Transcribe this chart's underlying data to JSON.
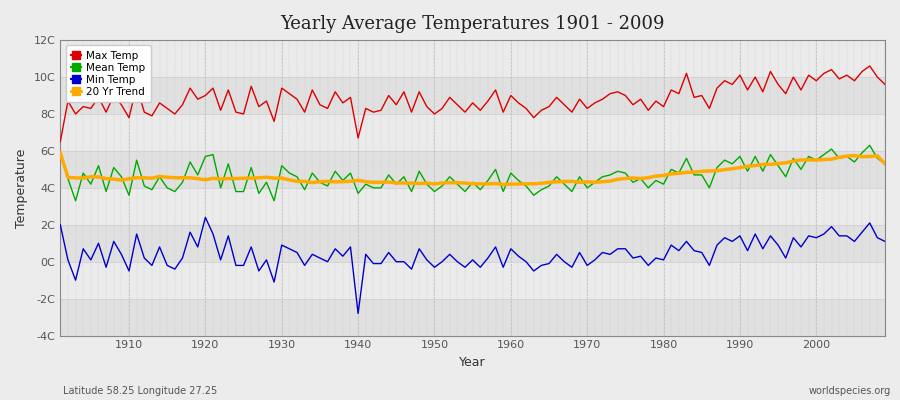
{
  "title": "Yearly Average Temperatures 1901 - 2009",
  "xlabel": "Year",
  "ylabel": "Temperature",
  "footnote_left": "Latitude 58.25 Longitude 27.25",
  "footnote_right": "worldspecies.org",
  "ylim": [
    -4,
    12
  ],
  "yticks": [
    -4,
    -2,
    0,
    2,
    4,
    6,
    8,
    10,
    12
  ],
  "ytick_labels": [
    "-4C",
    "-2C",
    "0C",
    "2C",
    "4C",
    "6C",
    "8C",
    "10C",
    "12C"
  ],
  "xlim": [
    1901,
    2009
  ],
  "xticks": [
    1910,
    1920,
    1930,
    1940,
    1950,
    1960,
    1970,
    1980,
    1990,
    2000
  ],
  "colors": {
    "max": "#dd0000",
    "mean": "#00aa00",
    "min": "#0000cc",
    "trend": "#ffaa00",
    "fig_bg": "#e8e8e8",
    "plot_bg": "#e0e0e0",
    "band_light": "#ebebeb",
    "band_dark": "#d8d8d8",
    "grid": "#cccccc"
  },
  "years": [
    1901,
    1902,
    1903,
    1904,
    1905,
    1906,
    1907,
    1908,
    1909,
    1910,
    1911,
    1912,
    1913,
    1914,
    1915,
    1916,
    1917,
    1918,
    1919,
    1920,
    1921,
    1922,
    1923,
    1924,
    1925,
    1926,
    1927,
    1928,
    1929,
    1930,
    1931,
    1932,
    1933,
    1934,
    1935,
    1936,
    1937,
    1938,
    1939,
    1940,
    1941,
    1942,
    1943,
    1944,
    1945,
    1946,
    1947,
    1948,
    1949,
    1950,
    1951,
    1952,
    1953,
    1954,
    1955,
    1956,
    1957,
    1958,
    1959,
    1960,
    1961,
    1962,
    1963,
    1964,
    1965,
    1966,
    1967,
    1968,
    1969,
    1970,
    1971,
    1972,
    1973,
    1974,
    1975,
    1976,
    1977,
    1978,
    1979,
    1980,
    1981,
    1982,
    1983,
    1984,
    1985,
    1986,
    1987,
    1988,
    1989,
    1990,
    1991,
    1992,
    1993,
    1994,
    1995,
    1996,
    1997,
    1998,
    1999,
    2000,
    2001,
    2002,
    2003,
    2004,
    2005,
    2006,
    2007,
    2008,
    2009
  ],
  "max_temp": [
    6.5,
    8.7,
    8.0,
    8.4,
    8.3,
    8.9,
    8.1,
    9.0,
    8.5,
    7.8,
    9.5,
    8.1,
    7.9,
    8.6,
    8.3,
    8.0,
    8.5,
    9.4,
    8.8,
    9.0,
    9.4,
    8.2,
    9.3,
    8.1,
    8.0,
    9.5,
    8.4,
    8.7,
    7.6,
    9.4,
    9.1,
    8.8,
    8.1,
    9.3,
    8.5,
    8.3,
    9.2,
    8.6,
    8.9,
    6.7,
    8.3,
    8.1,
    8.2,
    9.0,
    8.5,
    9.2,
    8.1,
    9.2,
    8.4,
    8.0,
    8.3,
    8.9,
    8.5,
    8.1,
    8.6,
    8.2,
    8.7,
    9.3,
    8.1,
    9.0,
    8.6,
    8.3,
    7.8,
    8.2,
    8.4,
    8.9,
    8.5,
    8.1,
    8.8,
    8.3,
    8.6,
    8.8,
    9.1,
    9.2,
    9.0,
    8.5,
    8.8,
    8.2,
    8.7,
    8.4,
    9.3,
    9.1,
    10.2,
    8.9,
    9.0,
    8.3,
    9.4,
    9.8,
    9.6,
    10.1,
    9.3,
    10.0,
    9.2,
    10.3,
    9.6,
    9.1,
    10.0,
    9.3,
    10.1,
    9.8,
    10.2,
    10.4,
    9.9,
    10.1,
    9.8,
    10.3,
    10.6,
    10.0,
    9.6
  ],
  "mean_temp": [
    5.9,
    4.5,
    3.3,
    4.8,
    4.2,
    5.2,
    3.8,
    5.1,
    4.6,
    3.6,
    5.5,
    4.1,
    3.9,
    4.6,
    4.0,
    3.8,
    4.3,
    5.4,
    4.7,
    5.7,
    5.8,
    4.0,
    5.3,
    3.8,
    3.8,
    5.1,
    3.7,
    4.3,
    3.3,
    5.2,
    4.8,
    4.6,
    3.9,
    4.8,
    4.3,
    4.1,
    4.9,
    4.4,
    4.8,
    3.7,
    4.2,
    4.0,
    4.0,
    4.7,
    4.2,
    4.6,
    3.8,
    4.9,
    4.2,
    3.8,
    4.1,
    4.6,
    4.2,
    3.8,
    4.3,
    3.9,
    4.4,
    5.0,
    3.8,
    4.8,
    4.4,
    4.1,
    3.6,
    3.9,
    4.1,
    4.6,
    4.2,
    3.8,
    4.6,
    4.0,
    4.3,
    4.6,
    4.7,
    4.9,
    4.8,
    4.3,
    4.5,
    4.0,
    4.4,
    4.2,
    5.0,
    4.8,
    5.6,
    4.7,
    4.7,
    4.0,
    5.1,
    5.5,
    5.3,
    5.7,
    4.9,
    5.7,
    4.9,
    5.8,
    5.2,
    4.6,
    5.6,
    5.0,
    5.7,
    5.5,
    5.8,
    6.1,
    5.6,
    5.7,
    5.4,
    5.9,
    6.3,
    5.6,
    5.3
  ],
  "min_temp": [
    2.0,
    0.1,
    -1.0,
    0.7,
    0.1,
    1.0,
    -0.3,
    1.1,
    0.4,
    -0.5,
    1.5,
    0.2,
    -0.2,
    0.8,
    -0.2,
    -0.4,
    0.2,
    1.6,
    0.8,
    2.4,
    1.5,
    0.1,
    1.4,
    -0.2,
    -0.2,
    0.8,
    -0.5,
    0.1,
    -1.1,
    0.9,
    0.7,
    0.5,
    -0.2,
    0.4,
    0.2,
    0.0,
    0.7,
    0.3,
    0.8,
    -2.8,
    0.4,
    -0.1,
    -0.1,
    0.5,
    0.0,
    0.0,
    -0.4,
    0.7,
    0.1,
    -0.3,
    0.0,
    0.4,
    0.0,
    -0.3,
    0.1,
    -0.3,
    0.2,
    0.8,
    -0.3,
    0.7,
    0.3,
    0.0,
    -0.5,
    -0.2,
    -0.1,
    0.4,
    0.0,
    -0.3,
    0.5,
    -0.2,
    0.1,
    0.5,
    0.4,
    0.7,
    0.7,
    0.2,
    0.3,
    -0.2,
    0.2,
    0.1,
    0.9,
    0.6,
    1.1,
    0.6,
    0.5,
    -0.2,
    0.9,
    1.3,
    1.1,
    1.4,
    0.6,
    1.5,
    0.7,
    1.4,
    0.9,
    0.2,
    1.3,
    0.8,
    1.4,
    1.3,
    1.5,
    1.9,
    1.4,
    1.4,
    1.1,
    1.6,
    2.1,
    1.3,
    1.1
  ],
  "trend_window": 20
}
